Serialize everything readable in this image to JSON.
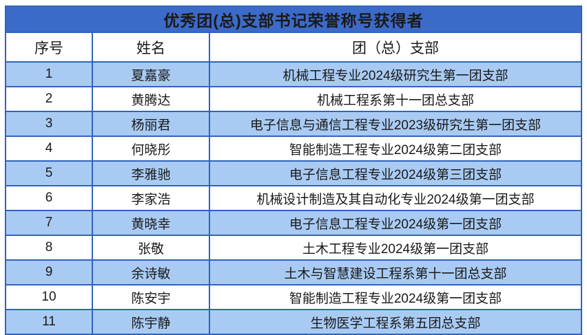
{
  "title": "优秀团(总)支部书记荣誉称号获得者",
  "columns": [
    "序号",
    "姓名",
    "团（总）支部"
  ],
  "rows": [
    {
      "no": "1",
      "name": "夏嘉豪",
      "branch": "机械工程专业2024级研究生第一团支部"
    },
    {
      "no": "2",
      "name": "黄腾达",
      "branch": "机械工程系第十一团总支部"
    },
    {
      "no": "3",
      "name": "杨丽君",
      "branch": "电子信息与通信工程专业2023级研究生第一团支部"
    },
    {
      "no": "4",
      "name": "何晓彤",
      "branch": "智能制造工程专业2024级第二团支部"
    },
    {
      "no": "5",
      "name": "李雅驰",
      "branch": "电子信息工程专业2024级第三团支部"
    },
    {
      "no": "6",
      "name": "李家浩",
      "branch": "机械设计制造及其自动化专业2024级第一团支部"
    },
    {
      "no": "7",
      "name": "黄晓幸",
      "branch": "电子信息工程专业2024级第一团支部"
    },
    {
      "no": "8",
      "name": "张敬",
      "branch": "土木工程专业2024级第一团支部"
    },
    {
      "no": "9",
      "name": "余诗敏",
      "branch": "土木与智慧建设工程系第十一团总支部"
    },
    {
      "no": "10",
      "name": "陈安宇",
      "branch": "智能制造工程专业2024级第一团支部"
    },
    {
      "no": "11",
      "name": "陈宇静",
      "branch": "生物医学工程系第五团总支部"
    }
  ],
  "colors": {
    "title_bg": "#3c6ac8",
    "title_text": "#ffff00",
    "row_alt_bg": "#a9cbf3",
    "row_bg": "#ffffff",
    "border": "#2f63be",
    "body_text": "#1a1a1a"
  }
}
